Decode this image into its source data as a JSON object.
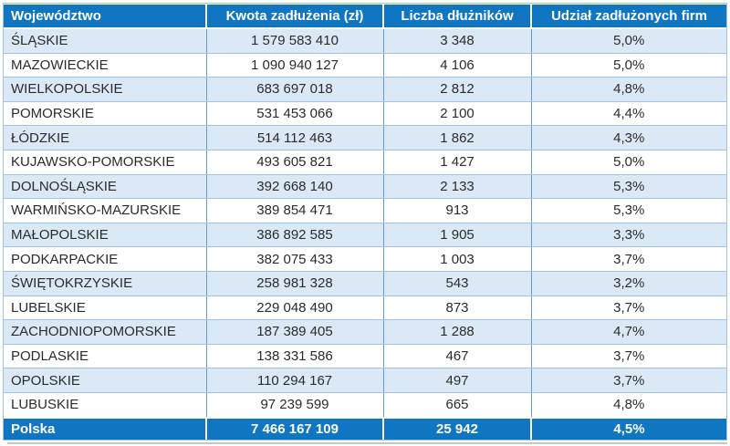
{
  "colors": {
    "header_bg": "#1176C2",
    "footer_bg": "#1176C2",
    "row_alt_bg": "#DBE9F6",
    "row_bg": "#FFFFFF",
    "grid_horizontal": "#9DC3E6",
    "grid_vertical": "#669CCB",
    "header_text": "#FFFFFF",
    "cell_text": "#2B2B2B",
    "shadow": "#C6C6C6"
  },
  "table": {
    "columns": [
      {
        "label": "Województwo"
      },
      {
        "label": "Kwota zadłużenia (zł)"
      },
      {
        "label": "Liczba dłużników"
      },
      {
        "label": "Udział zadłużonych firm"
      }
    ],
    "rows": [
      {
        "region": "ŚLĄSKIE",
        "debt": "1 579 583 410",
        "debtors": "3 348",
        "share": "5,0%"
      },
      {
        "region": "MAZOWIECKIE",
        "debt": "1 090 940 127",
        "debtors": "4 106",
        "share": "5,0%"
      },
      {
        "region": "WIELKOPOLSKIE",
        "debt": "683 697 018",
        "debtors": "2 812",
        "share": "4,8%"
      },
      {
        "region": "POMORSKIE",
        "debt": "531 453 066",
        "debtors": "2 100",
        "share": "4,4%"
      },
      {
        "region": "ŁÓDZKIE",
        "debt": "514 112 463",
        "debtors": "1 862",
        "share": "4,3%"
      },
      {
        "region": "KUJAWSKO-POMORSKIE",
        "debt": "493 605 821",
        "debtors": "1 427",
        "share": "5,0%"
      },
      {
        "region": "DOLNOŚLĄSKIE",
        "debt": "392 668 140",
        "debtors": "2 133",
        "share": "5,3%"
      },
      {
        "region": "WARMIŃSKO-MAZURSKIE",
        "debt": "389 854 471",
        "debtors": "913",
        "share": "5,3%"
      },
      {
        "region": "MAŁOPOLSKIE",
        "debt": "386 892 585",
        "debtors": "1 905",
        "share": "3,3%"
      },
      {
        "region": "PODKARPACKIE",
        "debt": "382 075 433",
        "debtors": "1 003",
        "share": "3,7%"
      },
      {
        "region": "ŚWIĘTOKRZYSKIE",
        "debt": "258 981 328",
        "debtors": "543",
        "share": "3,2%"
      },
      {
        "region": "LUBELSKIE",
        "debt": "229 048 490",
        "debtors": "873",
        "share": "3,7%"
      },
      {
        "region": "ZACHODNIOPOMORSKIE",
        "debt": "187 389 405",
        "debtors": "1 288",
        "share": "4,7%"
      },
      {
        "region": "PODLASKIE",
        "debt": "138 331 586",
        "debtors": "467",
        "share": "3,7%"
      },
      {
        "region": "OPOLSKIE",
        "debt": "110 294 167",
        "debtors": "497",
        "share": "3,7%"
      },
      {
        "region": "LUBUSKIE",
        "debt": "97 239 599",
        "debtors": "665",
        "share": "4,8%"
      }
    ],
    "footer": {
      "region": "Polska",
      "debt": "7 466 167 109",
      "debtors": "25 942",
      "share": "4,5%"
    }
  },
  "chart_data": {
    "type": "table",
    "columns": [
      "Województwo",
      "Kwota zadłużenia (zł)",
      "Liczba dłużników",
      "Udział zadłużonych firm"
    ],
    "rows": [
      [
        "ŚLĄSKIE",
        1579583410,
        3348,
        "5,0%"
      ],
      [
        "MAZOWIECKIE",
        1090940127,
        4106,
        "5,0%"
      ],
      [
        "WIELKOPOLSKIE",
        683697018,
        2812,
        "4,8%"
      ],
      [
        "POMORSKIE",
        531453066,
        2100,
        "4,4%"
      ],
      [
        "ŁÓDZKIE",
        514112463,
        1862,
        "4,3%"
      ],
      [
        "KUJAWSKO-POMORSKIE",
        493605821,
        1427,
        "5,0%"
      ],
      [
        "DOLNOŚLĄSKIE",
        392668140,
        2133,
        "5,3%"
      ],
      [
        "WARMIŃSKO-MAZURSKIE",
        389854471,
        913,
        "5,3%"
      ],
      [
        "MAŁOPOLSKIE",
        386892585,
        1905,
        "3,3%"
      ],
      [
        "PODKARPACKIE",
        382075433,
        1003,
        "3,7%"
      ],
      [
        "ŚWIĘTOKRZYSKIE",
        258981328,
        543,
        "3,2%"
      ],
      [
        "LUBELSKIE",
        229048490,
        873,
        "3,7%"
      ],
      [
        "ZACHODNIOPOMORSKIE",
        187389405,
        1288,
        "4,7%"
      ],
      [
        "PODLASKIE",
        138331586,
        467,
        "3,7%"
      ],
      [
        "OPOLSKIE",
        110294167,
        497,
        "3,7%"
      ],
      [
        "LUBUSKIE",
        97239599,
        665,
        "4,8%"
      ]
    ],
    "footer_row": [
      "Polska",
      7466167109,
      25942,
      "4,5%"
    ]
  }
}
